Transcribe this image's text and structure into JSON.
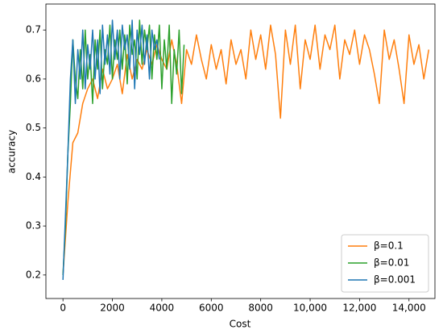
{
  "chart_data": {
    "type": "line",
    "xlabel": "Cost",
    "ylabel": "accuracy",
    "xlim": [
      -690,
      15050
    ],
    "ylim": [
      0.152,
      0.753
    ],
    "xticks": [
      0,
      2000,
      4000,
      6000,
      8000,
      {
        "value": 10000,
        "label": "10,000"
      },
      {
        "value": 12000,
        "label": "12,000"
      },
      {
        "value": 14000,
        "label": "14,000"
      }
    ],
    "yticks": [
      0.2,
      0.3,
      0.4,
      0.5,
      0.6,
      0.7
    ],
    "legend": "lower right",
    "series": [
      {
        "name": "β=0.1",
        "color": "#ff7f0e",
        "x": [
          0,
          200,
          400,
          600,
          800,
          1000,
          1200,
          1400,
          1600,
          1800,
          2000,
          2200,
          2400,
          2600,
          2800,
          3000,
          3200,
          3400,
          3600,
          3800,
          4000,
          4200,
          4400,
          4600,
          4800,
          5000,
          5200,
          5400,
          5600,
          5800,
          6000,
          6200,
          6400,
          6600,
          6800,
          7000,
          7200,
          7400,
          7600,
          7800,
          8000,
          8200,
          8400,
          8600,
          8800,
          9000,
          9200,
          9400,
          9600,
          9800,
          10000,
          10200,
          10400,
          10600,
          10800,
          11000,
          11200,
          11400,
          11600,
          11800,
          12000,
          12200,
          12400,
          12600,
          12800,
          13000,
          13200,
          13400,
          13600,
          13800,
          14000,
          14200,
          14400,
          14600,
          14800
        ],
        "values": [
          0.2,
          0.35,
          0.47,
          0.49,
          0.55,
          0.58,
          0.6,
          0.56,
          0.62,
          0.58,
          0.6,
          0.63,
          0.57,
          0.65,
          0.6,
          0.64,
          0.62,
          0.66,
          0.63,
          0.67,
          0.64,
          0.62,
          0.68,
          0.63,
          0.55,
          0.66,
          0.63,
          0.69,
          0.64,
          0.6,
          0.67,
          0.62,
          0.66,
          0.59,
          0.68,
          0.63,
          0.66,
          0.6,
          0.7,
          0.64,
          0.69,
          0.62,
          0.71,
          0.65,
          0.52,
          0.7,
          0.63,
          0.71,
          0.58,
          0.68,
          0.64,
          0.71,
          0.62,
          0.69,
          0.66,
          0.71,
          0.6,
          0.68,
          0.65,
          0.7,
          0.63,
          0.69,
          0.66,
          0.61,
          0.55,
          0.7,
          0.64,
          0.68,
          0.62,
          0.55,
          0.69,
          0.63,
          0.67,
          0.6,
          0.66
        ]
      },
      {
        "name": "β=0.01",
        "color": "#2ca02c",
        "x": [
          0,
          100,
          200,
          300,
          400,
          500,
          600,
          700,
          800,
          900,
          1000,
          1100,
          1200,
          1300,
          1400,
          1500,
          1600,
          1700,
          1800,
          1900,
          2000,
          2100,
          2200,
          2300,
          2400,
          2500,
          2600,
          2700,
          2800,
          2900,
          3000,
          3100,
          3200,
          3300,
          3400,
          3500,
          3600,
          3700,
          3800,
          3900,
          4000,
          4100,
          4200,
          4300,
          4400,
          4500,
          4600,
          4700,
          4800,
          4900
        ],
        "values": [
          0.2,
          0.3,
          0.45,
          0.55,
          0.68,
          0.6,
          0.56,
          0.66,
          0.58,
          0.7,
          0.6,
          0.65,
          0.55,
          0.68,
          0.62,
          0.7,
          0.58,
          0.66,
          0.63,
          0.71,
          0.6,
          0.68,
          0.64,
          0.7,
          0.62,
          0.69,
          0.59,
          0.71,
          0.65,
          0.68,
          0.6,
          0.72,
          0.63,
          0.7,
          0.66,
          0.71,
          0.6,
          0.69,
          0.64,
          0.71,
          0.58,
          0.68,
          0.62,
          0.71,
          0.55,
          0.66,
          0.61,
          0.7,
          0.57,
          0.67
        ]
      },
      {
        "name": "β=0.001",
        "color": "#1f77b4",
        "x": [
          0,
          100,
          200,
          300,
          400,
          500,
          600,
          700,
          800,
          900,
          1000,
          1100,
          1200,
          1300,
          1400,
          1500,
          1600,
          1700,
          1800,
          1900,
          2000,
          2100,
          2200,
          2300,
          2400,
          2500,
          2600,
          2700,
          2800,
          2900,
          3000,
          3100,
          3200,
          3300,
          3400,
          3500,
          3600,
          3700,
          3800,
          3900
        ],
        "values": [
          0.19,
          0.32,
          0.45,
          0.6,
          0.68,
          0.55,
          0.66,
          0.6,
          0.7,
          0.58,
          0.67,
          0.62,
          0.7,
          0.6,
          0.68,
          0.57,
          0.71,
          0.63,
          0.69,
          0.61,
          0.72,
          0.64,
          0.7,
          0.6,
          0.71,
          0.66,
          0.69,
          0.62,
          0.72,
          0.58,
          0.7,
          0.65,
          0.71,
          0.63,
          0.69,
          0.6,
          0.7,
          0.66,
          0.68,
          0.64
        ]
      }
    ]
  }
}
